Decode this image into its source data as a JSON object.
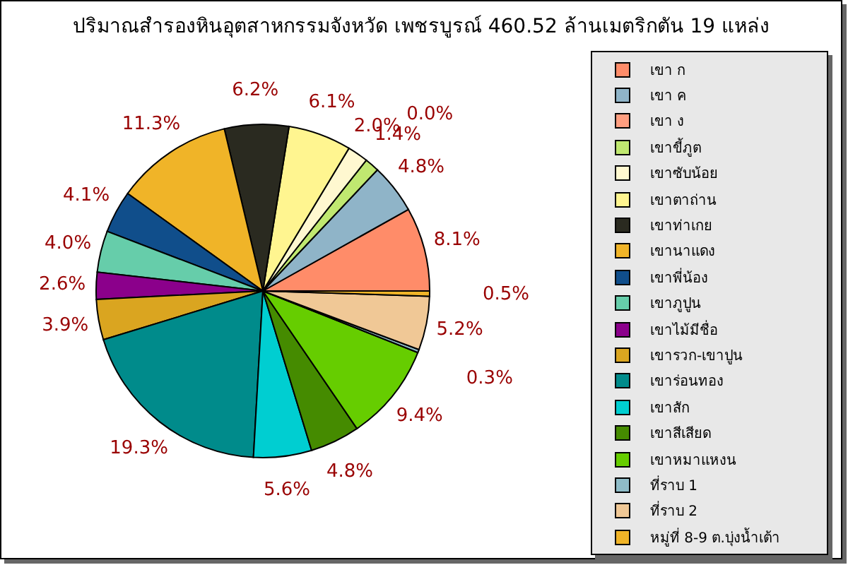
{
  "chart_data": {
    "type": "pie",
    "title": "ปริมาณสำรองหินอุตสาหกรรมจังหวัด เพชรบูรณ์ 460.52 ล้านเมตริกตัน 19 แหล่ง",
    "categories": [
      "เขา ก",
      "เขา ค",
      "เขา ง",
      "เขาขี้ภูต",
      "เขาซับน้อย",
      "เขาตาถ่าน",
      "เขาท่าเกย",
      "เขานาแดง",
      "เขาพี่น้อง",
      "เขาภูปูน",
      "เขาไม้มีชื่อ",
      "เขารวก-เขาปูน",
      "เขาร่อนทอง",
      "เขาสัก",
      "เขาสีเสียด",
      "เขาหมาแหงน",
      "ที่ราบ 1",
      "ที่ราบ 2",
      "หมู่ที่ 8-9 ต.บุ่งน้ำเต้า"
    ],
    "values": [
      8.1,
      4.8,
      0.0,
      1.4,
      2.0,
      6.1,
      6.2,
      11.3,
      4.1,
      4.0,
      2.6,
      3.9,
      19.3,
      5.6,
      4.8,
      9.4,
      0.3,
      5.2,
      0.5
    ],
    "colors": [
      "#ff8c69",
      "#8fb4c8",
      "#ff9e80",
      "#c0e870",
      "#fff8d0",
      "#fff590",
      "#2a2a20",
      "#f0b428",
      "#104e8b",
      "#66cdaa",
      "#8b008b",
      "#daa520",
      "#008b8b",
      "#00ced1",
      "#458b00",
      "#66cd00",
      "#8fbcc8",
      "#f0c896",
      "#f0b428"
    ],
    "value_labels": [
      "8.1%",
      "4.8%",
      "0.0%",
      "1.4%",
      "2.0%",
      "6.1%",
      "6.2%",
      "11.3%",
      "4.1%",
      "4.0%",
      "2.6%",
      "3.9%",
      "19.3%",
      "5.6%",
      "4.8%",
      "9.4%",
      "0.3%",
      "5.2%",
      "0.5%"
    ],
    "legend": "right"
  }
}
